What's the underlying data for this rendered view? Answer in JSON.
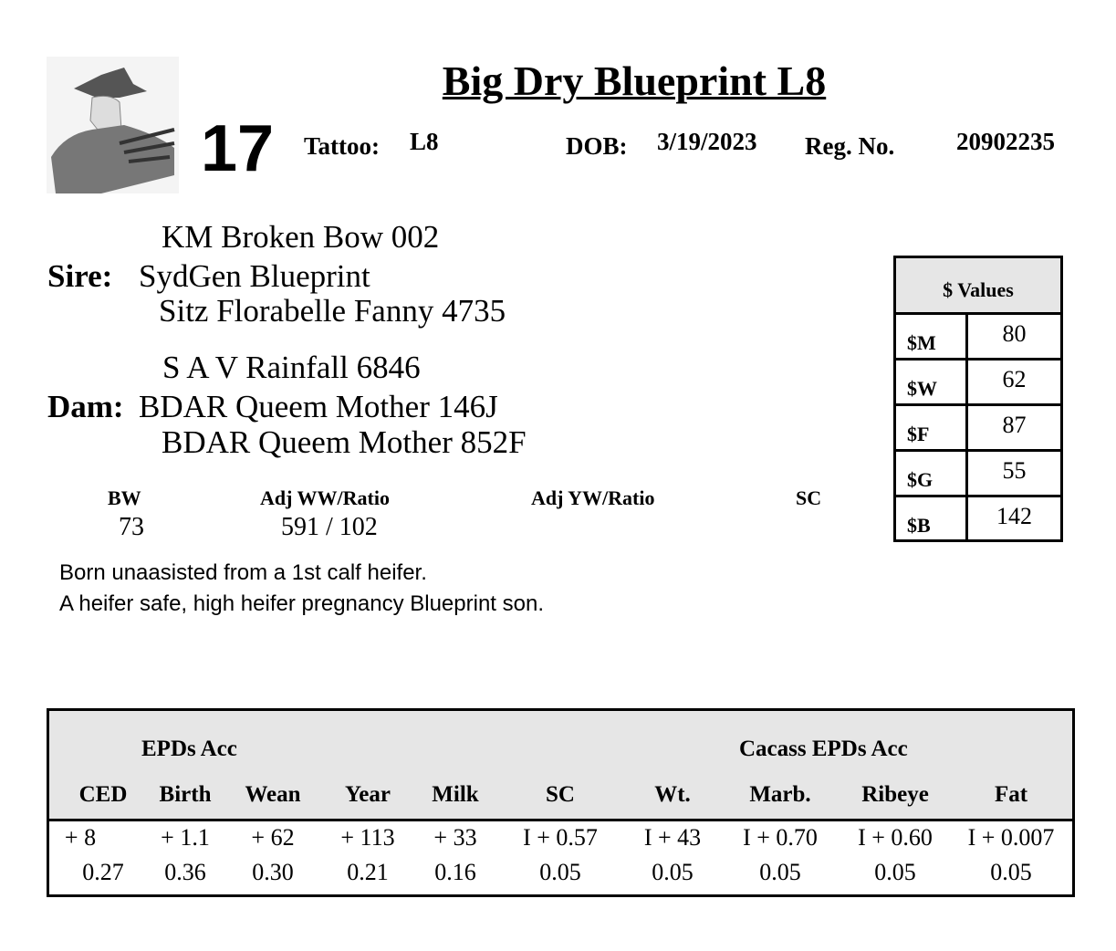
{
  "header": {
    "title": "Big Dry Blueprint L8",
    "lot_number": "17",
    "tattoo_label": "Tattoo:",
    "tattoo": "L8",
    "dob_label": "DOB:",
    "dob": "3/19/2023",
    "reg_label": "Reg. No.",
    "reg_no": "20902235"
  },
  "pedigree": {
    "sire_label": "Sire:",
    "sire": "SydGen Blueprint",
    "sire_sire": "KM Broken Bow 002",
    "sire_dam": "Sitz Florabelle Fanny 4735",
    "dam_label": "Dam:",
    "dam": "BDAR Queem Mother 146J",
    "dam_sire": "S A V Rainfall 6846",
    "dam_dam": "BDAR Queem Mother 852F"
  },
  "dollar_values": {
    "title": "$ Values",
    "rows": [
      {
        "label": "$M",
        "value": "80"
      },
      {
        "label": "$W",
        "value": "62"
      },
      {
        "label": "$F",
        "value": "87"
      },
      {
        "label": "$G",
        "value": "55"
      },
      {
        "label": "$B",
        "value": "142"
      }
    ]
  },
  "stats": {
    "bw_label": "BW",
    "bw": "73",
    "ww_label": "Adj WW/Ratio",
    "ww": "591 / 102",
    "yw_label": "Adj YW/Ratio",
    "yw": "",
    "sc_label": "SC",
    "sc": ""
  },
  "notes": [
    "Born unaasisted from a 1st calf heifer.",
    "A heifer safe, high heifer pregnancy Blueprint son."
  ],
  "epd_table": {
    "group1": "EPDs   Acc",
    "group2": "Cacass EPDs    Acc",
    "columns": [
      {
        "header": "CED",
        "value": "+ 8",
        "acc": "0.27"
      },
      {
        "header": "Birth",
        "value": "+ 1.1",
        "acc": "0.36"
      },
      {
        "header": "Wean",
        "value": "+ 62",
        "acc": "0.30"
      },
      {
        "header": "Year",
        "value": "+ 113",
        "acc": "0.21"
      },
      {
        "header": "Milk",
        "value": "+ 33",
        "acc": "0.16"
      },
      {
        "header": "SC",
        "value": "I + 0.57",
        "acc": "0.05"
      },
      {
        "header": "Wt.",
        "value": "I + 43",
        "acc": "0.05"
      },
      {
        "header": "Marb.",
        "value": "I + 0.70",
        "acc": "0.05"
      },
      {
        "header": "Ribeye",
        "value": "I + 0.60",
        "acc": "0.05"
      },
      {
        "header": "Fat",
        "value": "I + 0.007",
        "acc": "0.05"
      }
    ]
  }
}
